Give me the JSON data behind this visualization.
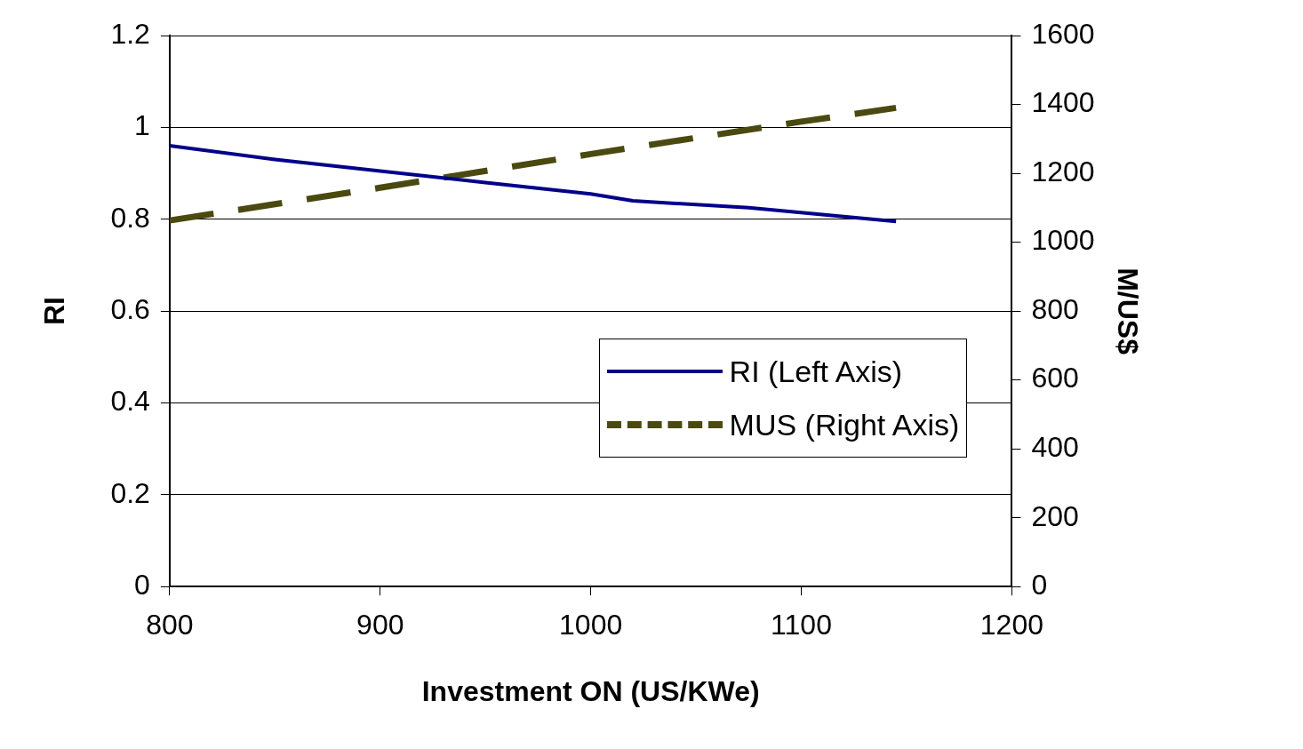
{
  "chart_data": {
    "type": "line",
    "xlabel": "Investment ON (US/KWe)",
    "ylabel": "RI",
    "y2label": "M/US$",
    "xlim": [
      800,
      1200
    ],
    "xticks": [
      800,
      900,
      1000,
      1100,
      1200
    ],
    "ylim": [
      0,
      1.2
    ],
    "yticks": [
      0,
      0.2,
      0.4,
      0.6,
      0.8,
      1,
      1.2
    ],
    "y2lim": [
      0,
      1600
    ],
    "y2ticks": [
      0,
      200,
      400,
      600,
      800,
      1000,
      1200,
      1400,
      1600
    ],
    "grid": "y",
    "legend": "right",
    "marker": "none",
    "series": [
      {
        "name": "RI (Left Axis)",
        "color": "#00008b",
        "line_style": "solid",
        "x": [
          800,
          850,
          900,
          950,
          1000,
          1020,
          1075,
          1145
        ],
        "values": [
          0.96,
          0.93,
          0.905,
          0.88,
          0.855,
          0.84,
          0.825,
          0.795
        ]
      },
      {
        "name": "MUS (Right Axis)",
        "color": "#4a4a10",
        "line_style": "dashed",
        "axis": "y2",
        "x": [
          800,
          900,
          1000,
          1100,
          1145
        ],
        "values": [
          1063,
          1158,
          1256,
          1350,
          1390
        ]
      }
    ]
  }
}
